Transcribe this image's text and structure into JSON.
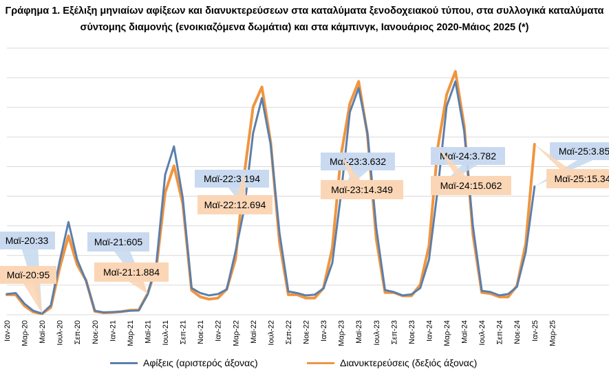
{
  "title_line1": "Γράφημα 1. Εξέλιξη μηνιαίων αφίξεων και διανυκτερεύσεων στα καταλύματα ξενοδοχειακού τύπου, στα συλλογικά καταλύματα",
  "title_line2": "σύντομης διαμονής (ενοικιαζόμενα δωμάτια) και στα κάμπινγκ, Ιανουάριος 2020-Μάιος 2025 (*)",
  "colors": {
    "arrivals": "#5b7fab",
    "nights": "#f0953f",
    "callout_blue": "#c9daf0",
    "callout_orange": "#fbd6b6",
    "grid": "#d9d9d9"
  },
  "chart_data": {
    "type": "line",
    "x_labels": [
      "Ιαν-20",
      "Μαρ-20",
      "Μαϊ-20",
      "Ιουλ-20",
      "Σεπ-20",
      "Νοε-20",
      "Ιαν-21",
      "Μαρ-21",
      "Μαϊ-21",
      "Ιουλ-21",
      "Σεπ-21",
      "Νοε-21",
      "Ιαν-22",
      "Μαρ-22",
      "Μαϊ-22",
      "Ιουλ-22",
      "Σεπ-22",
      "Νοε-22",
      "Ιαν-23",
      "Μαρ-23",
      "Μαϊ-23",
      "Ιουλ-23",
      "Σεπ-23",
      "Νοε-23",
      "Ιαν-24",
      "Μαρ-24",
      "Μαϊ-24",
      "Ιουλ-24",
      "Σεπ-24",
      "Νοε-24",
      "Ιαν-25",
      "Μαρ-25"
    ],
    "series": [
      {
        "name": "Αφίξεις (αριστερός άξονας)",
        "axis": "left",
        "values": [
          620,
          650,
          330,
          120,
          33,
          280,
          1600,
          2780,
          1650,
          1020,
          120,
          70,
          80,
          90,
          120,
          130,
          605,
          1550,
          4200,
          5050,
          3500,
          800,
          650,
          580,
          620,
          760,
          1900,
          3194,
          5450,
          6500,
          5100,
          2450,
          700,
          650,
          580,
          600,
          790,
          1550,
          3632,
          6080,
          6800,
          5450,
          2600,
          740,
          680,
          580,
          610,
          800,
          1650,
          3782,
          6250,
          7000,
          5500,
          2650,
          720,
          680,
          580,
          620,
          840,
          1880,
          3850
        ]
      },
      {
        "name": "Διανυκτερεύσεις (δεξιός άξονας)",
        "axis": "right",
        "values": [
          1800,
          1800,
          800,
          250,
          95,
          650,
          4200,
          7100,
          4500,
          3100,
          300,
          180,
          210,
          280,
          400,
          420,
          1884,
          4300,
          11000,
          13400,
          10000,
          2200,
          1600,
          1400,
          1500,
          2300,
          5000,
          12694,
          18700,
          20500,
          15500,
          6500,
          1800,
          1800,
          1500,
          1500,
          2400,
          6000,
          14349,
          19000,
          21000,
          16200,
          6800,
          2000,
          2000,
          1700,
          1700,
          2700,
          6200,
          15062,
          19800,
          21900,
          17000,
          7200,
          2000,
          1900,
          1600,
          1600,
          2600,
          6400,
          15340
        ]
      }
    ],
    "callouts": [
      {
        "text": "Μαϊ-20:33",
        "series": "arrivals",
        "index": 4
      },
      {
        "text": "Μαϊ-20:95",
        "series": "nights",
        "index": 4
      },
      {
        "text": "Μαϊ-21:605",
        "series": "arrivals",
        "index": 16
      },
      {
        "text": "Μαϊ-21:1.884",
        "series": "nights",
        "index": 16
      },
      {
        "text": "Μαϊ-22:3.194",
        "series": "arrivals",
        "index": 27
      },
      {
        "text": "Μαϊ-22:12.694",
        "series": "nights",
        "index": 27
      },
      {
        "text": "Μαϊ-23:3.632",
        "series": "arrivals",
        "index": 38
      },
      {
        "text": "Μαϊ-23:14.349",
        "series": "nights",
        "index": 38
      },
      {
        "text": "Μαϊ-24:3.782",
        "series": "arrivals",
        "index": 49
      },
      {
        "text": "Μαϊ-24:15.062",
        "series": "nights",
        "index": 49
      },
      {
        "text": "Μαϊ-25:3.85",
        "series": "arrivals",
        "index": 60
      },
      {
        "text": "Μαϊ-25:15.34",
        "series": "nights",
        "index": 60
      }
    ],
    "left_ylim": [
      0,
      8000
    ],
    "right_ylim": [
      0,
      24000
    ],
    "grid": true,
    "legend_position": "bottom"
  }
}
